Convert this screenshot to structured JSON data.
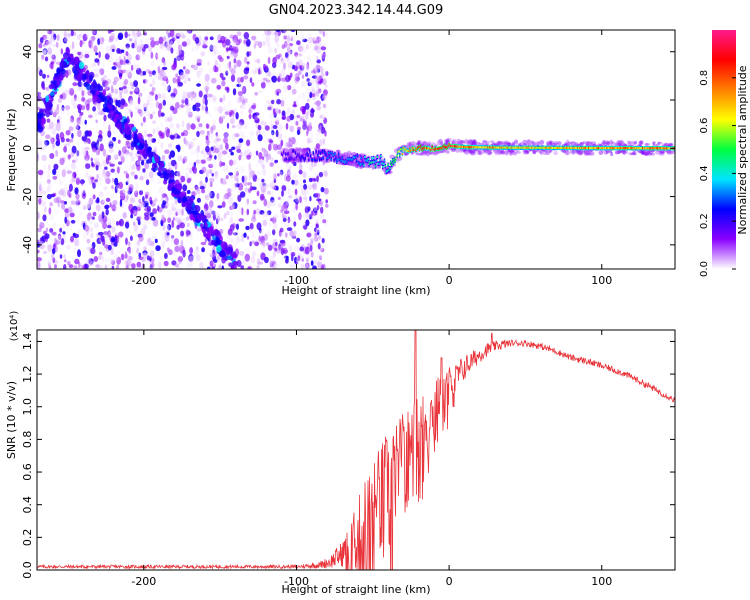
{
  "figure_title": "GN04.2023.342.14.44.G09",
  "colorbar": {
    "label": "Normalized spectral amplitude",
    "ticks": [
      "0.0",
      "0.2",
      "0.4",
      "0.6",
      "0.8"
    ],
    "tick_values": [
      0.0,
      0.2,
      0.4,
      0.6,
      0.8
    ],
    "range": [
      0,
      1
    ],
    "colormap": [
      "#ffffff",
      "#8a00ff",
      "#0000ff",
      "#00e5ff",
      "#00ff40",
      "#ffff00",
      "#ff7f00",
      "#ff0000",
      "#ff1a8c"
    ]
  },
  "chart_data": [
    {
      "type": "heatmap",
      "title": "",
      "xlabel": "Height of straight line (km)",
      "ylabel": "Frequency (Hz)",
      "xlim": [
        -270,
        148
      ],
      "ylim": [
        -50,
        49
      ],
      "xticks": [
        -200,
        -100,
        0,
        100
      ],
      "xtick_labels": [
        "-200",
        "-100",
        "0",
        "100"
      ],
      "yticks": [
        -40,
        -20,
        0,
        20,
        40
      ],
      "ytick_labels": [
        "-40",
        "-20",
        "0",
        "20",
        "40"
      ],
      "grid": false,
      "noise_region_x": [
        -270,
        -80
      ],
      "diagonal_ridge": {
        "x": [
          -270,
          -250,
          -220,
          -190,
          -160,
          -140
        ],
        "y": [
          8,
          38,
          15,
          -8,
          -32,
          -48
        ]
      },
      "signal_band": {
        "x": [
          -110,
          -80,
          -60,
          -50,
          -45,
          -40,
          -35,
          -30,
          -20,
          -10,
          0,
          10,
          30,
          60,
          100,
          148
        ],
        "y": [
          -3,
          -3,
          -5,
          -6,
          -5,
          -9,
          -3,
          -1,
          0,
          0,
          1,
          0.5,
          0.3,
          0.2,
          0.1,
          0
        ],
        "amplitude": [
          0.2,
          0.3,
          0.35,
          0.45,
          0.4,
          0.5,
          0.55,
          0.7,
          0.85,
          0.9,
          0.95,
          0.8,
          0.75,
          0.72,
          0.78,
          0.8
        ]
      }
    },
    {
      "type": "line",
      "title": "",
      "xlabel": "Height of straight line (km)",
      "ylabel": "SNR (10 * v/v)",
      "y_scale_label": "(x10⁴)",
      "xlim": [
        -270,
        148
      ],
      "ylim": [
        0,
        1.47
      ],
      "xticks": [
        -200,
        -100,
        0,
        100
      ],
      "xtick_labels": [
        "-200",
        "-100",
        "0",
        "100"
      ],
      "yticks": [
        0.0,
        0.2,
        0.4,
        0.6,
        0.8,
        1.0,
        1.2,
        1.4
      ],
      "ytick_labels": [
        "0.0",
        "0.2",
        "0.4",
        "0.6",
        "0.8",
        "1.0",
        "1.2",
        "1.4"
      ],
      "grid": false,
      "color": "#e8343a",
      "series": [
        {
          "x": [
            -270,
            -200,
            -150,
            -100,
            -85,
            -78,
            -70,
            -65,
            -60,
            -55,
            -50,
            -45,
            -40,
            -35,
            -30,
            -25,
            -20,
            -15,
            -10,
            -5,
            0,
            5,
            10,
            15,
            20,
            25,
            30,
            35,
            40,
            50,
            60,
            70,
            80,
            90,
            100,
            110,
            120,
            130,
            140,
            148
          ],
          "values": [
            0.02,
            0.02,
            0.02,
            0.02,
            0.03,
            0.05,
            0.1,
            0.15,
            0.2,
            0.28,
            0.35,
            0.42,
            0.5,
            0.58,
            0.66,
            0.74,
            0.82,
            0.9,
            0.98,
            1.05,
            1.12,
            1.18,
            1.24,
            1.28,
            1.32,
            1.35,
            1.37,
            1.38,
            1.39,
            1.39,
            1.37,
            1.34,
            1.3,
            1.28,
            1.25,
            1.22,
            1.18,
            1.13,
            1.08,
            1.04
          ],
          "noise_amplitude": [
            0.01,
            0.01,
            0.01,
            0.01,
            0.02,
            0.04,
            0.08,
            0.15,
            0.25,
            0.35,
            0.35,
            0.4,
            0.4,
            0.35,
            0.35,
            0.3,
            0.3,
            0.25,
            0.2,
            0.18,
            0.15,
            0.1,
            0.08,
            0.06,
            0.05,
            0.04,
            0.03,
            0.03,
            0.02,
            0.02,
            0.02,
            0.02,
            0.02,
            0.02,
            0.02,
            0.02,
            0.02,
            0.02,
            0.02,
            0.02
          ],
          "peaks": [
            {
              "x": -22,
              "y": 1.47
            },
            {
              "x": -5,
              "y": 1.3
            },
            {
              "x": 28,
              "y": 1.45
            }
          ]
        }
      ]
    }
  ]
}
